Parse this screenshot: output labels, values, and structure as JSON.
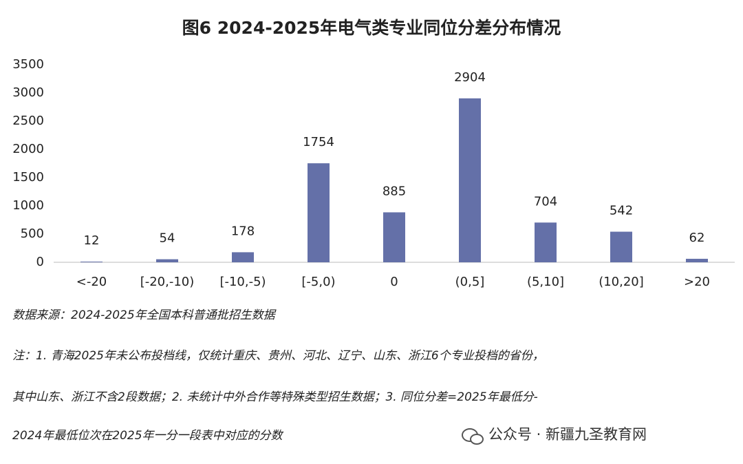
{
  "chart_data": {
    "type": "bar",
    "title": "图6 2024-2025年电气类专业同位分差分布情况",
    "categories": [
      "<-20",
      "[-20,-10)",
      "[-10,-5)",
      "[-5,0)",
      "0",
      "(0,5]",
      "(5,10]",
      "(10,20]",
      ">20"
    ],
    "values": [
      12,
      54,
      178,
      1754,
      885,
      2904,
      704,
      542,
      62
    ],
    "color": "#6470a8",
    "ylim": [
      0,
      3500
    ],
    "yticks": [
      0,
      500,
      1000,
      1500,
      2000,
      2500,
      3000,
      3500
    ],
    "grid": false,
    "data_labels": true
  },
  "notes": {
    "lines": [
      "数据来源：2024-2025年全国本科普通批招生数据",
      "注：1. 青海2025年未公布投档线，仅统计重庆、贵州、河北、辽宁、山东、浙江6个专业投档的省份，",
      "其中山东、浙江不含2段数据；2. 未统计中外合作等特殊类型招生数据；3. 同位分差=2025年最低分-",
      "2024年最低位次在2025年一分一段表中对应的分数"
    ]
  },
  "footer": "公众号 · 新疆九圣教育网"
}
